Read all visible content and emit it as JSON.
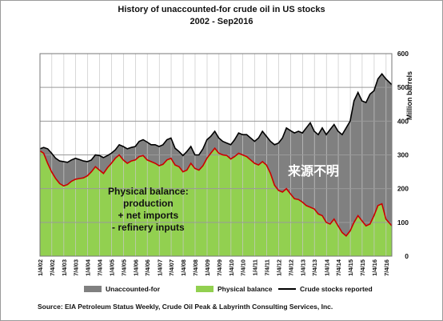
{
  "title": "History of unaccounted-for crude oil in US stocks",
  "subtitle": "2002 - Sep2016",
  "source": "Source: EIA Petroleum Status Weekly, Crude Oil Peak & Labyrinth Consulting Services, Inc.",
  "annotations": {
    "physical_balance": [
      "Physical balance:",
      "production",
      "+ net imports",
      "- refinery inputs"
    ],
    "chinese": "来源不明"
  },
  "colors": {
    "unaccounted": "#808080",
    "physical": "#92d050",
    "reported_line": "#000000",
    "physical_edge": "#cc0000",
    "grid": "#c8c8c8"
  },
  "chart_data": {
    "type": "area",
    "ylabel": "Million barrels",
    "ylim": [
      0,
      600
    ],
    "yticks": [
      0,
      100,
      200,
      300,
      400,
      500,
      600
    ],
    "grid": true,
    "xlim": [
      "2002-01-04",
      "2016-09-30"
    ],
    "xtick_labels": [
      "1/4/02",
      "7/4/02",
      "1/4/03",
      "7/4/03",
      "1/4/04",
      "7/4/04",
      "1/4/05",
      "7/4/05",
      "1/4/06",
      "7/4/06",
      "1/4/07",
      "7/4/07",
      "1/4/08",
      "7/4/08",
      "1/4/09",
      "7/4/09",
      "1/4/10",
      "7/4/10",
      "1/4/11",
      "7/4/11",
      "1/4/12",
      "7/4/12",
      "1/4/13",
      "7/4/13",
      "1/4/14",
      "7/4/14",
      "1/4/15",
      "7/4/15",
      "1/4/16",
      "7/4/16"
    ],
    "legend": [
      "Unaccounted-for",
      "Physical balance",
      "Crude stocks reported"
    ],
    "legend_position": "bottom",
    "series": [
      {
        "name": "Crude stocks reported",
        "points": [
          [
            "2002-01-04",
            318
          ],
          [
            "2002-03-01",
            322
          ],
          [
            "2002-05-01",
            318
          ],
          [
            "2002-07-01",
            305
          ],
          [
            "2002-09-01",
            290
          ],
          [
            "2002-11-01",
            282
          ],
          [
            "2003-01-01",
            280
          ],
          [
            "2003-03-01",
            278
          ],
          [
            "2003-05-01",
            285
          ],
          [
            "2003-07-01",
            290
          ],
          [
            "2003-09-01",
            286
          ],
          [
            "2003-11-01",
            282
          ],
          [
            "2004-01-01",
            280
          ],
          [
            "2004-03-01",
            285
          ],
          [
            "2004-05-01",
            300
          ],
          [
            "2004-07-01",
            298
          ],
          [
            "2004-09-01",
            292
          ],
          [
            "2004-11-01",
            298
          ],
          [
            "2005-01-01",
            305
          ],
          [
            "2005-03-01",
            315
          ],
          [
            "2005-05-01",
            330
          ],
          [
            "2005-07-01",
            325
          ],
          [
            "2005-09-01",
            318
          ],
          [
            "2005-11-01",
            322
          ],
          [
            "2006-01-01",
            325
          ],
          [
            "2006-03-01",
            340
          ],
          [
            "2006-05-01",
            345
          ],
          [
            "2006-07-01",
            338
          ],
          [
            "2006-09-01",
            330
          ],
          [
            "2006-11-01",
            330
          ],
          [
            "2007-01-01",
            325
          ],
          [
            "2007-03-01",
            330
          ],
          [
            "2007-05-01",
            345
          ],
          [
            "2007-07-01",
            350
          ],
          [
            "2007-09-01",
            320
          ],
          [
            "2007-11-01",
            310
          ],
          [
            "2008-01-01",
            298
          ],
          [
            "2008-03-01",
            310
          ],
          [
            "2008-05-01",
            325
          ],
          [
            "2008-07-01",
            300
          ],
          [
            "2008-09-01",
            300
          ],
          [
            "2008-11-01",
            318
          ],
          [
            "2009-01-01",
            345
          ],
          [
            "2009-03-01",
            355
          ],
          [
            "2009-05-01",
            370
          ],
          [
            "2009-07-01",
            350
          ],
          [
            "2009-09-01",
            340
          ],
          [
            "2009-11-01",
            335
          ],
          [
            "2010-01-01",
            330
          ],
          [
            "2010-03-01",
            345
          ],
          [
            "2010-05-01",
            365
          ],
          [
            "2010-07-01",
            360
          ],
          [
            "2010-09-01",
            360
          ],
          [
            "2010-11-01",
            350
          ],
          [
            "2011-01-01",
            340
          ],
          [
            "2011-03-01",
            350
          ],
          [
            "2011-05-01",
            370
          ],
          [
            "2011-07-01",
            355
          ],
          [
            "2011-09-01",
            340
          ],
          [
            "2011-11-01",
            330
          ],
          [
            "2012-01-01",
            335
          ],
          [
            "2012-03-01",
            350
          ],
          [
            "2012-05-01",
            380
          ],
          [
            "2012-07-01",
            372
          ],
          [
            "2012-09-01",
            365
          ],
          [
            "2012-11-01",
            370
          ],
          [
            "2013-01-01",
            365
          ],
          [
            "2013-03-01",
            380
          ],
          [
            "2013-05-01",
            395
          ],
          [
            "2013-07-01",
            370
          ],
          [
            "2013-09-01",
            360
          ],
          [
            "2013-11-01",
            380
          ],
          [
            "2014-01-01",
            360
          ],
          [
            "2014-03-01",
            375
          ],
          [
            "2014-05-01",
            390
          ],
          [
            "2014-07-01",
            370
          ],
          [
            "2014-09-01",
            360
          ],
          [
            "2014-11-01",
            380
          ],
          [
            "2015-01-01",
            400
          ],
          [
            "2015-03-01",
            460
          ],
          [
            "2015-05-01",
            485
          ],
          [
            "2015-07-01",
            460
          ],
          [
            "2015-09-01",
            455
          ],
          [
            "2015-11-01",
            480
          ],
          [
            "2016-01-01",
            490
          ],
          [
            "2016-03-01",
            525
          ],
          [
            "2016-05-01",
            540
          ],
          [
            "2016-07-01",
            525
          ],
          [
            "2016-09-30",
            508
          ]
        ]
      },
      {
        "name": "Physical balance",
        "points": [
          [
            "2002-01-04",
            312
          ],
          [
            "2002-03-01",
            305
          ],
          [
            "2002-05-01",
            275
          ],
          [
            "2002-07-01",
            250
          ],
          [
            "2002-09-01",
            230
          ],
          [
            "2002-11-01",
            215
          ],
          [
            "2003-01-01",
            208
          ],
          [
            "2003-03-01",
            212
          ],
          [
            "2003-05-01",
            222
          ],
          [
            "2003-07-01",
            228
          ],
          [
            "2003-09-01",
            230
          ],
          [
            "2003-11-01",
            232
          ],
          [
            "2004-01-01",
            238
          ],
          [
            "2004-03-01",
            250
          ],
          [
            "2004-05-01",
            265
          ],
          [
            "2004-07-01",
            255
          ],
          [
            "2004-09-01",
            245
          ],
          [
            "2004-11-01",
            262
          ],
          [
            "2005-01-01",
            275
          ],
          [
            "2005-03-01",
            290
          ],
          [
            "2005-05-01",
            300
          ],
          [
            "2005-07-01",
            285
          ],
          [
            "2005-09-01",
            275
          ],
          [
            "2005-11-01",
            282
          ],
          [
            "2006-01-01",
            285
          ],
          [
            "2006-03-01",
            295
          ],
          [
            "2006-05-01",
            298
          ],
          [
            "2006-07-01",
            285
          ],
          [
            "2006-09-01",
            280
          ],
          [
            "2006-11-01",
            275
          ],
          [
            "2007-01-01",
            268
          ],
          [
            "2007-03-01",
            272
          ],
          [
            "2007-05-01",
            285
          ],
          [
            "2007-07-01",
            290
          ],
          [
            "2007-09-01",
            270
          ],
          [
            "2007-11-01",
            265
          ],
          [
            "2008-01-01",
            250
          ],
          [
            "2008-03-01",
            255
          ],
          [
            "2008-05-01",
            275
          ],
          [
            "2008-07-01",
            260
          ],
          [
            "2008-09-01",
            255
          ],
          [
            "2008-11-01",
            268
          ],
          [
            "2009-01-01",
            290
          ],
          [
            "2009-03-01",
            305
          ],
          [
            "2009-05-01",
            320
          ],
          [
            "2009-07-01",
            305
          ],
          [
            "2009-09-01",
            300
          ],
          [
            "2009-11-01",
            298
          ],
          [
            "2010-01-01",
            288
          ],
          [
            "2010-03-01",
            295
          ],
          [
            "2010-05-01",
            305
          ],
          [
            "2010-07-01",
            300
          ],
          [
            "2010-09-01",
            295
          ],
          [
            "2010-11-01",
            285
          ],
          [
            "2011-01-01",
            275
          ],
          [
            "2011-03-01",
            270
          ],
          [
            "2011-05-01",
            280
          ],
          [
            "2011-07-01",
            270
          ],
          [
            "2011-09-01",
            245
          ],
          [
            "2011-11-01",
            210
          ],
          [
            "2012-01-01",
            195
          ],
          [
            "2012-03-01",
            190
          ],
          [
            "2012-05-01",
            200
          ],
          [
            "2012-07-01",
            185
          ],
          [
            "2012-09-01",
            170
          ],
          [
            "2012-11-01",
            168
          ],
          [
            "2013-01-01",
            160
          ],
          [
            "2013-03-01",
            150
          ],
          [
            "2013-05-01",
            145
          ],
          [
            "2013-07-01",
            140
          ],
          [
            "2013-09-01",
            125
          ],
          [
            "2013-11-01",
            120
          ],
          [
            "2014-01-01",
            100
          ],
          [
            "2014-03-01",
            95
          ],
          [
            "2014-05-01",
            110
          ],
          [
            "2014-07-01",
            90
          ],
          [
            "2014-09-01",
            70
          ],
          [
            "2014-11-01",
            60
          ],
          [
            "2015-01-01",
            75
          ],
          [
            "2015-03-01",
            100
          ],
          [
            "2015-05-01",
            120
          ],
          [
            "2015-07-01",
            105
          ],
          [
            "2015-09-01",
            90
          ],
          [
            "2015-11-01",
            95
          ],
          [
            "2016-01-01",
            120
          ],
          [
            "2016-03-01",
            150
          ],
          [
            "2016-05-01",
            155
          ],
          [
            "2016-07-01",
            110
          ],
          [
            "2016-09-30",
            90
          ]
        ]
      }
    ]
  }
}
